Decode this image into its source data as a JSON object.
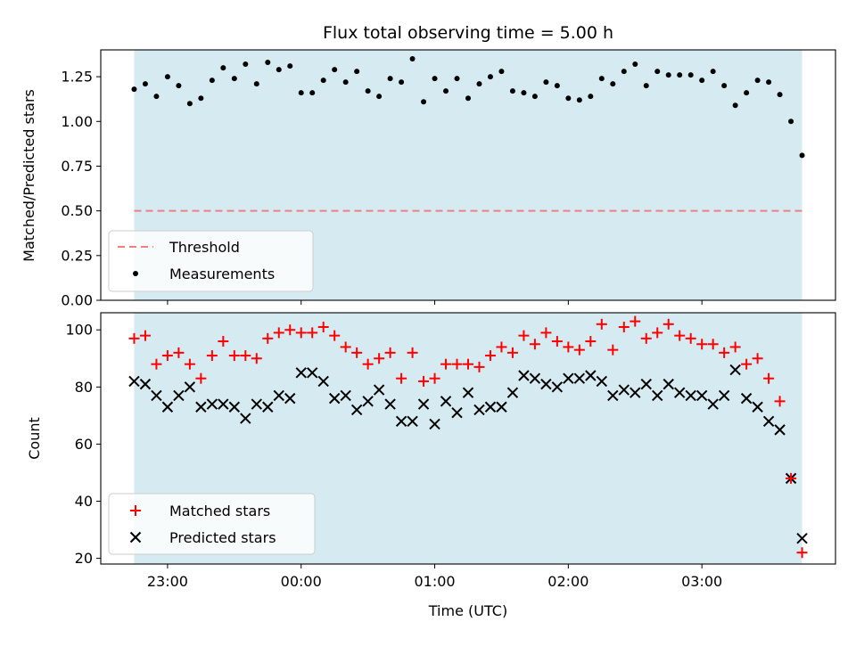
{
  "chart_data": [
    {
      "type": "scatter",
      "title": "Flux total observing time = 5.00 h",
      "xlabel": "",
      "ylabel": "Matched/Predicted stars",
      "ylim": [
        0,
        1.4
      ],
      "yticks": [
        "0.00",
        "0.25",
        "0.50",
        "0.75",
        "1.00",
        "1.25"
      ],
      "xlim_hours": [
        -1.5,
        4.0
      ],
      "observing_window_hours": [
        -1.25,
        3.75
      ],
      "threshold": 0.5,
      "legend": {
        "placement": "lower-left",
        "entries": [
          "Threshold",
          "Measurements"
        ]
      },
      "colors": {
        "window": "#d5ebf1",
        "threshold": "#f08080",
        "points": "#000000"
      },
      "series": [
        {
          "name": "Measurements",
          "x_step_hours": 0.0833,
          "x_start_hours": -1.25,
          "values": [
            1.18,
            1.21,
            1.14,
            1.25,
            1.2,
            1.1,
            1.13,
            1.23,
            1.3,
            1.24,
            1.32,
            1.21,
            1.33,
            1.29,
            1.31,
            1.16,
            1.16,
            1.23,
            1.29,
            1.22,
            1.28,
            1.17,
            1.14,
            1.24,
            1.22,
            1.35,
            1.11,
            1.24,
            1.17,
            1.24,
            1.13,
            1.21,
            1.25,
            1.28,
            1.17,
            1.16,
            1.14,
            1.22,
            1.2,
            1.13,
            1.12,
            1.14,
            1.24,
            1.21,
            1.28,
            1.32,
            1.2,
            1.28,
            1.26,
            1.26,
            1.26,
            1.23,
            1.28,
            1.2,
            1.09,
            1.16,
            1.23,
            1.22,
            1.15,
            1.0,
            0.81
          ]
        }
      ]
    },
    {
      "type": "scatter",
      "xlabel": "Time (UTC)",
      "ylabel": "Count",
      "ylim": [
        18,
        106
      ],
      "yticks": [
        "20",
        "40",
        "60",
        "80",
        "100"
      ],
      "xticks": [
        "23:00",
        "00:00",
        "01:00",
        "02:00",
        "03:00"
      ],
      "xtick_hours": [
        -1,
        0,
        1,
        2,
        3
      ],
      "legend": {
        "placement": "lower-left",
        "entries": [
          "Matched stars",
          "Predicted stars"
        ]
      },
      "colors": {
        "window": "#d5ebf1",
        "matched": "#ff0000",
        "predicted": "#000000"
      },
      "series": [
        {
          "name": "Matched stars",
          "marker": "plus",
          "values": [
            97,
            98,
            88,
            91,
            92,
            88,
            83,
            91,
            96,
            91,
            91,
            90,
            97,
            99,
            100,
            99,
            99,
            101,
            98,
            94,
            92,
            88,
            90,
            92,
            83,
            92,
            82,
            83,
            88,
            88,
            88,
            87,
            91,
            94,
            92,
            98,
            95,
            99,
            96,
            94,
            93,
            96,
            102,
            93,
            101,
            103,
            97,
            99,
            102,
            98,
            97,
            95,
            95,
            92,
            94,
            88,
            90,
            83,
            75,
            48,
            22
          ]
        },
        {
          "name": "Predicted stars",
          "marker": "x",
          "values": [
            82,
            81,
            77,
            73,
            77,
            80,
            73,
            74,
            74,
            73,
            69,
            74,
            73,
            77,
            76,
            85,
            85,
            82,
            76,
            77,
            72,
            75,
            79,
            74,
            68,
            68,
            74,
            67,
            75,
            71,
            78,
            72,
            73,
            73,
            78,
            84,
            83,
            81,
            80,
            83,
            83,
            84,
            82,
            77,
            79,
            78,
            81,
            77,
            81,
            78,
            77,
            77,
            74,
            77,
            86,
            76,
            73,
            68,
            65,
            48,
            27
          ]
        }
      ]
    }
  ]
}
